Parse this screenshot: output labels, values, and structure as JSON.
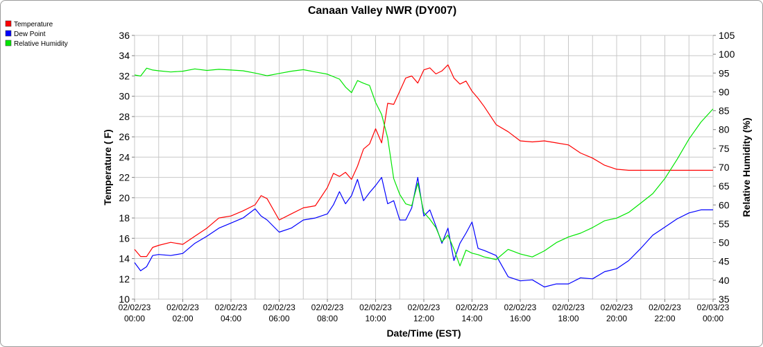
{
  "chart_data": {
    "type": "line",
    "title": "Canaan Valley NWR (DY007)",
    "xlabel": "Date/Time (EST)",
    "ylabel_left": "Temperature ( F)",
    "ylabel_right": "Relative Humidity (%)",
    "ylim_left": [
      10,
      36
    ],
    "ylim_right": [
      35,
      105
    ],
    "yticks_left": [
      "10",
      "12",
      "14",
      "16",
      "18",
      "20",
      "22",
      "24",
      "26",
      "28",
      "30",
      "32",
      "34",
      "36"
    ],
    "yticks_right": [
      "35",
      "40",
      "45",
      "50",
      "55",
      "60",
      "65",
      "70",
      "75",
      "80",
      "85",
      "90",
      "95",
      "100",
      "105"
    ],
    "xticks": [
      {
        "date": "02/02/23",
        "time": "00:00"
      },
      {
        "date": "02/02/23",
        "time": "02:00"
      },
      {
        "date": "02/02/23",
        "time": "04:00"
      },
      {
        "date": "02/02/23",
        "time": "06:00"
      },
      {
        "date": "02/02/23",
        "time": "08:00"
      },
      {
        "date": "02/02/23",
        "time": "10:00"
      },
      {
        "date": "02/02/23",
        "time": "12:00"
      },
      {
        "date": "02/02/23",
        "time": "14:00"
      },
      {
        "date": "02/02/23",
        "time": "16:00"
      },
      {
        "date": "02/02/23",
        "time": "18:00"
      },
      {
        "date": "02/02/23",
        "time": "20:00"
      },
      {
        "date": "02/02/23",
        "time": "22:00"
      },
      {
        "date": "02/03/23",
        "time": "00:00"
      }
    ],
    "grid": true,
    "legend_position": "top-left",
    "series": [
      {
        "name": "Temperature",
        "color": "#ff0000",
        "axis": "left",
        "x_hours": [
          0,
          0.25,
          0.5,
          0.75,
          1,
          1.5,
          2,
          2.5,
          3,
          3.5,
          4,
          4.5,
          5,
          5.25,
          5.5,
          6,
          6.5,
          7,
          7.5,
          8,
          8.25,
          8.5,
          8.75,
          9,
          9.25,
          9.5,
          9.75,
          10,
          10.25,
          10.5,
          10.75,
          11,
          11.25,
          11.5,
          11.75,
          12,
          12.25,
          12.5,
          12.75,
          13,
          13.25,
          13.5,
          13.75,
          14,
          14.25,
          14.5,
          15,
          15.5,
          16,
          16.5,
          17,
          17.5,
          18,
          18.5,
          19,
          19.5,
          20,
          20.5,
          21,
          21.5,
          22,
          22.5,
          23,
          23.5,
          24
        ],
        "values": [
          14.9,
          14.2,
          14.2,
          15.1,
          15.3,
          15.6,
          15.4,
          16.2,
          17.0,
          18.0,
          18.2,
          18.7,
          19.3,
          20.2,
          19.9,
          17.8,
          18.4,
          19.0,
          19.2,
          21.0,
          22.4,
          22.1,
          22.5,
          21.8,
          23.1,
          24.8,
          25.3,
          26.8,
          25.4,
          29.3,
          29.2,
          30.5,
          31.8,
          32.0,
          31.3,
          32.6,
          32.8,
          32.2,
          32.5,
          33.1,
          31.8,
          31.2,
          31.5,
          30.5,
          29.8,
          29.0,
          27.2,
          26.5,
          25.6,
          25.5,
          25.6,
          25.4,
          25.2,
          24.4,
          23.9,
          23.2,
          22.8,
          22.7,
          22.7,
          22.7,
          22.7,
          22.7,
          22.7,
          22.7,
          22.7
        ]
      },
      {
        "name": "Dew Point",
        "color": "#0000ff",
        "axis": "left",
        "x_hours": [
          0,
          0.25,
          0.5,
          0.75,
          1,
          1.5,
          2,
          2.5,
          3,
          3.5,
          4,
          4.5,
          5,
          5.25,
          5.5,
          6,
          6.5,
          7,
          7.5,
          8,
          8.25,
          8.5,
          8.75,
          9,
          9.25,
          9.5,
          9.75,
          10,
          10.25,
          10.5,
          10.75,
          11,
          11.25,
          11.5,
          11.75,
          12,
          12.25,
          12.5,
          12.75,
          13,
          13.25,
          13.5,
          13.75,
          14,
          14.25,
          14.5,
          15,
          15.5,
          16,
          16.5,
          17,
          17.5,
          18,
          18.5,
          19,
          19.5,
          20,
          20.5,
          21,
          21.5,
          22,
          22.5,
          23,
          23.5,
          24
        ],
        "values": [
          13.6,
          12.8,
          13.2,
          14.3,
          14.4,
          14.3,
          14.5,
          15.5,
          16.2,
          17.0,
          17.5,
          18.0,
          18.9,
          18.2,
          17.8,
          16.6,
          17.0,
          17.8,
          18.0,
          18.4,
          19.3,
          20.6,
          19.4,
          20.2,
          21.8,
          19.7,
          20.5,
          21.2,
          22.0,
          19.4,
          19.7,
          17.8,
          17.8,
          19.0,
          22.0,
          18.2,
          18.8,
          17.2,
          15.5,
          17.0,
          13.8,
          15.5,
          16.5,
          17.6,
          15.0,
          14.8,
          14.3,
          12.2,
          11.8,
          11.9,
          11.2,
          11.5,
          11.5,
          12.1,
          12.0,
          12.7,
          13.0,
          13.8,
          15.0,
          16.3,
          17.1,
          17.9,
          18.5,
          18.8,
          18.8
        ],
        "note_x": "values sampled hourly; polyline interpolates"
      },
      {
        "name": "Relative Humidity",
        "color": "#00e600",
        "axis": "right",
        "x_hours": [
          0,
          0.25,
          0.5,
          0.75,
          1,
          1.5,
          2,
          2.5,
          3,
          3.5,
          4,
          4.5,
          5,
          5.5,
          6,
          6.5,
          7,
          7.5,
          8,
          8.5,
          8.75,
          9,
          9.25,
          9.5,
          9.75,
          10,
          10.25,
          10.5,
          10.75,
          11,
          11.25,
          11.5,
          11.75,
          12,
          12.25,
          12.5,
          12.75,
          13,
          13.25,
          13.5,
          13.75,
          14,
          14.25,
          14.5,
          15,
          15.5,
          16,
          16.5,
          17,
          17.5,
          18,
          18.5,
          19,
          19.5,
          20,
          20.5,
          21,
          21.5,
          22,
          22.5,
          23,
          23.5,
          24
        ],
        "values": [
          94.5,
          94.2,
          96.3,
          95.8,
          95.6,
          95.3,
          95.5,
          96.1,
          95.7,
          96.0,
          95.8,
          95.6,
          95.0,
          94.3,
          94.9,
          95.5,
          95.9,
          95.3,
          94.7,
          93.4,
          91.3,
          89.8,
          93.0,
          92.3,
          91.7,
          87.2,
          84.0,
          77.8,
          67.0,
          62.8,
          60.3,
          59.8,
          65.8,
          58.0,
          56.2,
          54.0,
          50.2,
          52.0,
          48.3,
          43.8,
          48.0,
          47.2,
          46.8,
          46.2,
          45.5,
          48.2,
          47.0,
          46.2,
          47.8,
          50.0,
          51.5,
          52.5,
          54.0,
          55.8,
          56.5,
          58.0,
          60.5,
          63.0,
          67.0,
          72.0,
          77.5,
          82.0,
          85.5
        ]
      }
    ]
  }
}
